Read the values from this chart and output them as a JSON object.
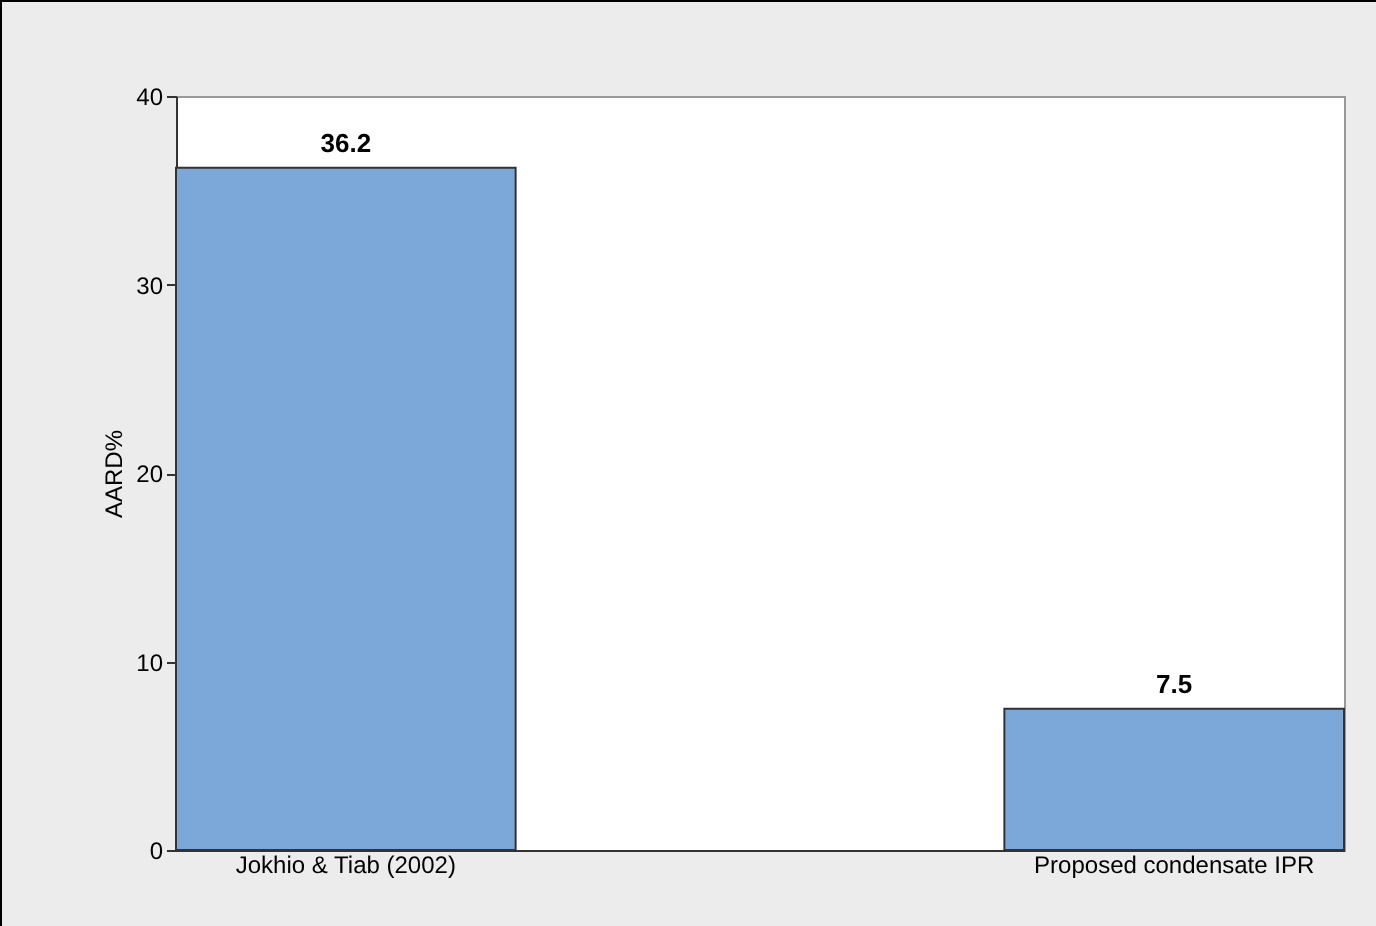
{
  "chart_data": {
    "type": "bar",
    "ylabel": "AARD%",
    "categories": [
      "Jokhio & Tiab (2002)",
      "Proposed condensate IPR"
    ],
    "values": [
      36.2,
      7.5
    ],
    "color": "#7ba7d9",
    "ylim": [
      0,
      40
    ],
    "yticks": [
      0,
      10,
      20,
      30,
      40
    ],
    "data_labels": true,
    "grid": false
  }
}
